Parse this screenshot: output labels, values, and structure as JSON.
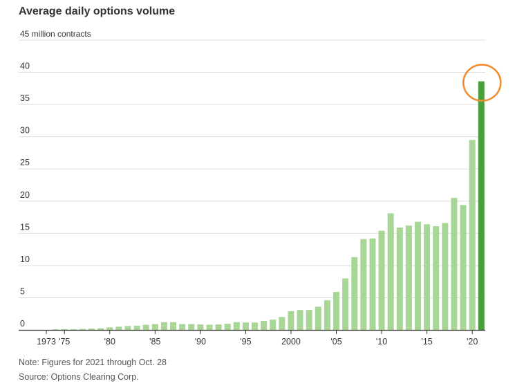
{
  "chart_data": {
    "type": "bar",
    "title": "Average daily options volume",
    "ylabel_unit": "million contracts",
    "ylim": [
      0,
      45
    ],
    "yticks": [
      0,
      5,
      10,
      15,
      20,
      25,
      30,
      35,
      40,
      45
    ],
    "top_tick_label": "45 million contracts",
    "grid": true,
    "x": [
      1973,
      1974,
      1975,
      1976,
      1977,
      1978,
      1979,
      1980,
      1981,
      1982,
      1983,
      1984,
      1985,
      1986,
      1987,
      1988,
      1989,
      1990,
      1991,
      1992,
      1993,
      1994,
      1995,
      1996,
      1997,
      1998,
      1999,
      2000,
      2001,
      2002,
      2003,
      2004,
      2005,
      2006,
      2007,
      2008,
      2009,
      2010,
      2011,
      2012,
      2013,
      2014,
      2015,
      2016,
      2017,
      2018,
      2019,
      2020,
      2021
    ],
    "values": [
      0.0,
      0.1,
      0.1,
      0.1,
      0.15,
      0.2,
      0.25,
      0.4,
      0.5,
      0.6,
      0.65,
      0.8,
      0.9,
      1.2,
      1.2,
      0.9,
      0.9,
      0.85,
      0.8,
      0.85,
      0.95,
      1.2,
      1.15,
      1.15,
      1.4,
      1.6,
      2.0,
      2.9,
      3.1,
      3.1,
      3.6,
      4.6,
      5.9,
      8.0,
      11.3,
      14.1,
      14.2,
      15.4,
      18.1,
      15.9,
      16.2,
      16.8,
      16.4,
      16.1,
      16.6,
      20.5,
      19.4,
      29.5,
      38.6
    ],
    "xticks": [
      {
        "year": 1973,
        "label": "1973"
      },
      {
        "year": 1975,
        "label": "'75"
      },
      {
        "year": 1980,
        "label": "'80"
      },
      {
        "year": 1985,
        "label": "'85"
      },
      {
        "year": 1990,
        "label": "'90"
      },
      {
        "year": 1995,
        "label": "'95"
      },
      {
        "year": 2000,
        "label": "2000"
      },
      {
        "year": 2005,
        "label": "'05"
      },
      {
        "year": 2010,
        "label": "'10"
      },
      {
        "year": 2015,
        "label": "'15"
      },
      {
        "year": 2020,
        "label": "'20"
      }
    ],
    "highlight_year": 2021,
    "colors": {
      "bar": "#a8d696",
      "highlight_bar": "#4a9e3c",
      "circle": "#f08a2c",
      "grid": "#dddddd",
      "axis": "#333333"
    }
  },
  "notes": {
    "note": "Note: Figures for 2021 through Oct. 28",
    "source": "Source: Options Clearing Corp."
  }
}
